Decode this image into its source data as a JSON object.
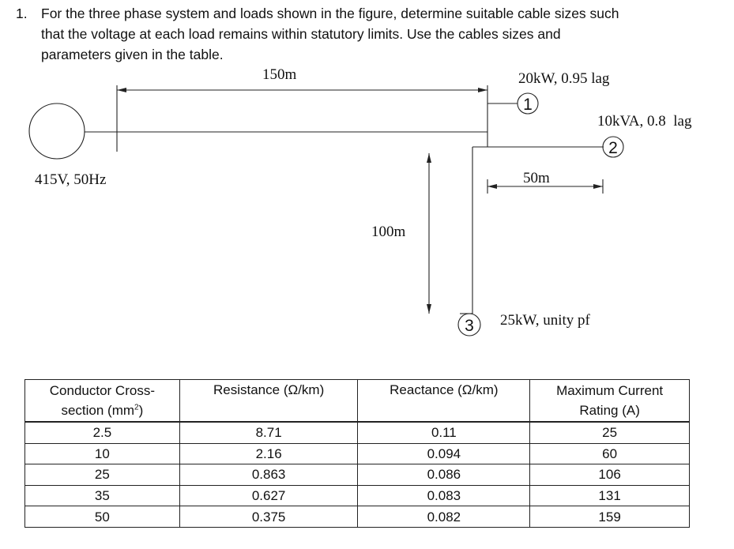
{
  "question": {
    "number": "1.",
    "lines": [
      "For the three phase system and loads shown in the figure, determine suitable cable sizes such",
      "that the voltage at each load remains within statutory limits. Use the cables sizes and",
      "parameters given in the table."
    ]
  },
  "figure": {
    "source_label": "415V, 50Hz",
    "segment_length_main": "150m",
    "segment_length_branch2": "50m",
    "segment_length_branch3": "100m",
    "nodes": [
      {
        "id": "1",
        "load": "20kW, 0.95 lag"
      },
      {
        "id": "2",
        "load": "10kVA, 0.8  lag"
      },
      {
        "id": "3",
        "load": "25kW, unity pf"
      }
    ]
  },
  "table": {
    "headers": [
      {
        "line1": "Conductor Cross-",
        "line2": "section (mm",
        "sup": "2",
        "tail": ")"
      },
      {
        "line1": "Resistance (Ω/km)",
        "line2": ""
      },
      {
        "line1": "Reactance (Ω/km)",
        "line2": ""
      },
      {
        "line1": "Maximum Current",
        "line2": "Rating (A)"
      }
    ],
    "rows": [
      [
        "2.5",
        "8.71",
        "0.11",
        "25"
      ],
      [
        "10",
        "2.16",
        "0.094",
        "60"
      ],
      [
        "25",
        "0.863",
        "0.086",
        "106"
      ],
      [
        "35",
        "0.627",
        "0.083",
        "131"
      ],
      [
        "50",
        "0.375",
        "0.082",
        "159"
      ]
    ]
  }
}
